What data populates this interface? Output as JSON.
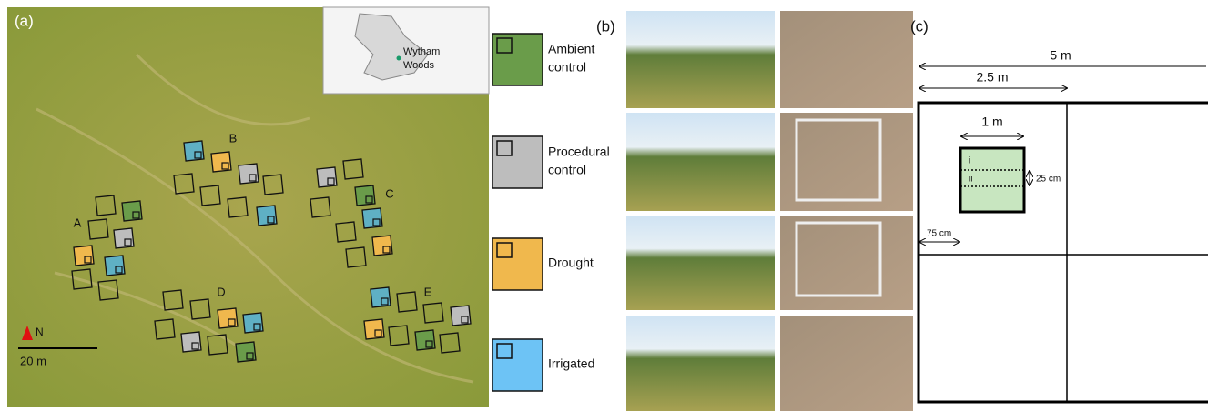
{
  "panel_a": {
    "label": "(a)",
    "map_inset": {
      "place_lines": [
        "Wytham",
        "Woods"
      ]
    },
    "sites": [
      "A",
      "B",
      "C",
      "D",
      "E"
    ],
    "north": "N",
    "scale_bar": "20 m"
  },
  "legend": [
    {
      "lines": [
        "Ambient",
        "control"
      ]
    },
    {
      "lines": [
        "Procedural",
        "control"
      ]
    },
    {
      "lines": [
        "Drought"
      ]
    },
    {
      "lines": [
        "Irrigated"
      ]
    }
  ],
  "panel_b": {
    "label": "(b)"
  },
  "panel_c": {
    "label": "(c)",
    "total_width": "5 m",
    "half_width": "2.5 m",
    "plot_width": "1 m",
    "strip_height": "25 cm",
    "offset": "75 cm",
    "strips": [
      "i",
      "ii"
    ]
  }
}
